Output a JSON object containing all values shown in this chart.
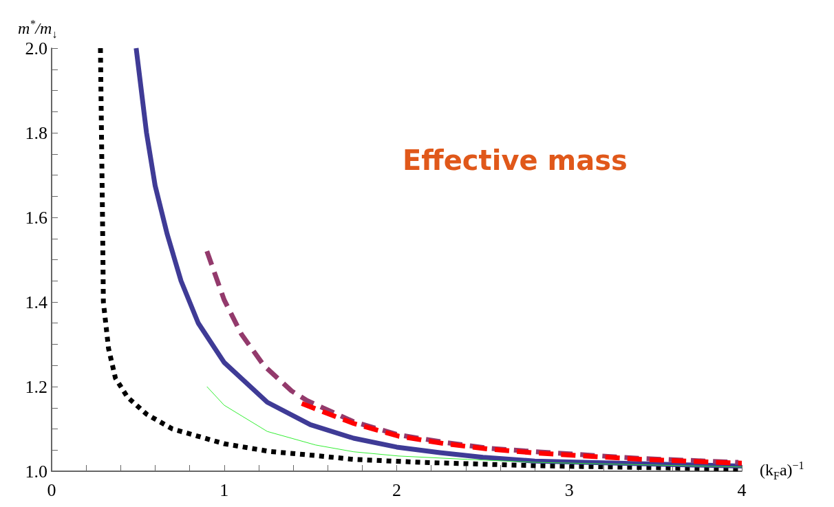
{
  "chart_data": {
    "type": "line",
    "xlabel": "(k$_{F}$a)$^{−1}$",
    "ylabel": "m$^{*}$/m$_{↓}$",
    "annotations": [
      "Effective mass"
    ],
    "xlim": [
      0,
      4
    ],
    "ylim": [
      1,
      2
    ],
    "xticks": [
      0,
      {
        "value": 0.2,
        "label": null
      },
      {
        "value": 0.4,
        "label": null
      },
      {
        "value": 0.6,
        "label": null
      },
      {
        "value": 0.8,
        "label": null
      },
      1,
      {
        "value": 1.2,
        "label": null
      },
      {
        "value": 1.4,
        "label": null
      },
      {
        "value": 1.6,
        "label": null
      },
      {
        "value": 1.8,
        "label": null
      },
      2,
      {
        "value": 2.2,
        "label": null
      },
      {
        "value": 2.4,
        "label": null
      },
      {
        "value": 2.6,
        "label": null
      },
      {
        "value": 2.8,
        "label": null
      },
      3,
      {
        "value": 3.2,
        "label": null
      },
      {
        "value": 3.4,
        "label": null
      },
      {
        "value": 3.6,
        "label": null
      },
      {
        "value": 3.8,
        "label": null
      },
      4
    ],
    "yticks": [
      {
        "value": 1,
        "label": "1.0"
      },
      {
        "value": 1.05,
        "label": null
      },
      {
        "value": 1.1,
        "label": null
      },
      {
        "value": 1.15,
        "label": null
      },
      {
        "value": 1.2,
        "label": "1.2"
      },
      {
        "value": 1.25,
        "label": null
      },
      {
        "value": 1.3,
        "label": null
      },
      {
        "value": 1.35,
        "label": null
      },
      {
        "value": 1.4,
        "label": "1.4"
      },
      {
        "value": 1.45,
        "label": null
      },
      {
        "value": 1.5,
        "label": null
      },
      {
        "value": 1.55,
        "label": null
      },
      {
        "value": 1.6,
        "label": "1.6"
      },
      {
        "value": 1.65,
        "label": null
      },
      {
        "value": 1.7,
        "label": null
      },
      {
        "value": 1.75,
        "label": null
      },
      {
        "value": 1.8,
        "label": "1.8"
      },
      {
        "value": 1.85,
        "label": null
      },
      {
        "value": 1.9,
        "label": null
      },
      {
        "value": 1.95,
        "label": null
      },
      {
        "value": 2,
        "label": "2.0"
      }
    ],
    "grid": false,
    "marker": "none",
    "series": [
      {
        "color": "#000000",
        "line_style": "dotted",
        "x": [
          0.283,
          0.295,
          0.3,
          0.33,
          0.37,
          0.44,
          0.55,
          0.7,
          1.0,
          1.26,
          1.53,
          1.75,
          2.14,
          2.81,
          4.0
        ],
        "values": [
          2.0,
          1.6,
          1.4,
          1.29,
          1.22,
          1.175,
          1.135,
          1.1,
          1.065,
          1.047,
          1.037,
          1.028,
          1.021,
          1.013,
          1.005
        ]
      },
      {
        "color": "#3f3b96",
        "line_style": "solid",
        "x": [
          0.49,
          0.55,
          0.6,
          0.67,
          0.75,
          0.85,
          1.0,
          1.25,
          1.5,
          1.75,
          2.0,
          2.25,
          2.5,
          2.8,
          4.0
        ],
        "values": [
          2.0,
          1.8,
          1.675,
          1.56,
          1.45,
          1.35,
          1.257,
          1.163,
          1.11,
          1.078,
          1.057,
          1.044,
          1.033,
          1.024,
          1.012
        ]
      },
      {
        "color": "#33ee33",
        "line_style": "solid",
        "x": [
          0.9,
          1.0,
          1.25,
          1.53,
          1.75,
          2.01,
          2.41,
          2.81,
          4.0
        ],
        "values": [
          1.2,
          1.156,
          1.094,
          1.062,
          1.046,
          1.036,
          1.028,
          1.021,
          1.01
        ]
      },
      {
        "color": "#933a6c",
        "line_style": "dashed",
        "x": [
          0.9,
          1.0,
          1.1,
          1.23,
          1.39,
          1.48,
          1.75,
          2.01,
          2.28,
          2.54,
          2.81,
          3.42,
          3.98
        ],
        "values": [
          1.52,
          1.405,
          1.324,
          1.25,
          1.19,
          1.167,
          1.117,
          1.086,
          1.068,
          1.054,
          1.046,
          1.03,
          1.021
        ]
      },
      {
        "color": "#ff0000",
        "line_style": "dashed",
        "x": [
          1.45,
          1.75,
          2.01,
          2.28,
          2.54,
          2.81,
          3.42,
          4.0
        ],
        "values": [
          1.16,
          1.113,
          1.083,
          1.065,
          1.052,
          1.043,
          1.028,
          1.019
        ]
      }
    ]
  }
}
